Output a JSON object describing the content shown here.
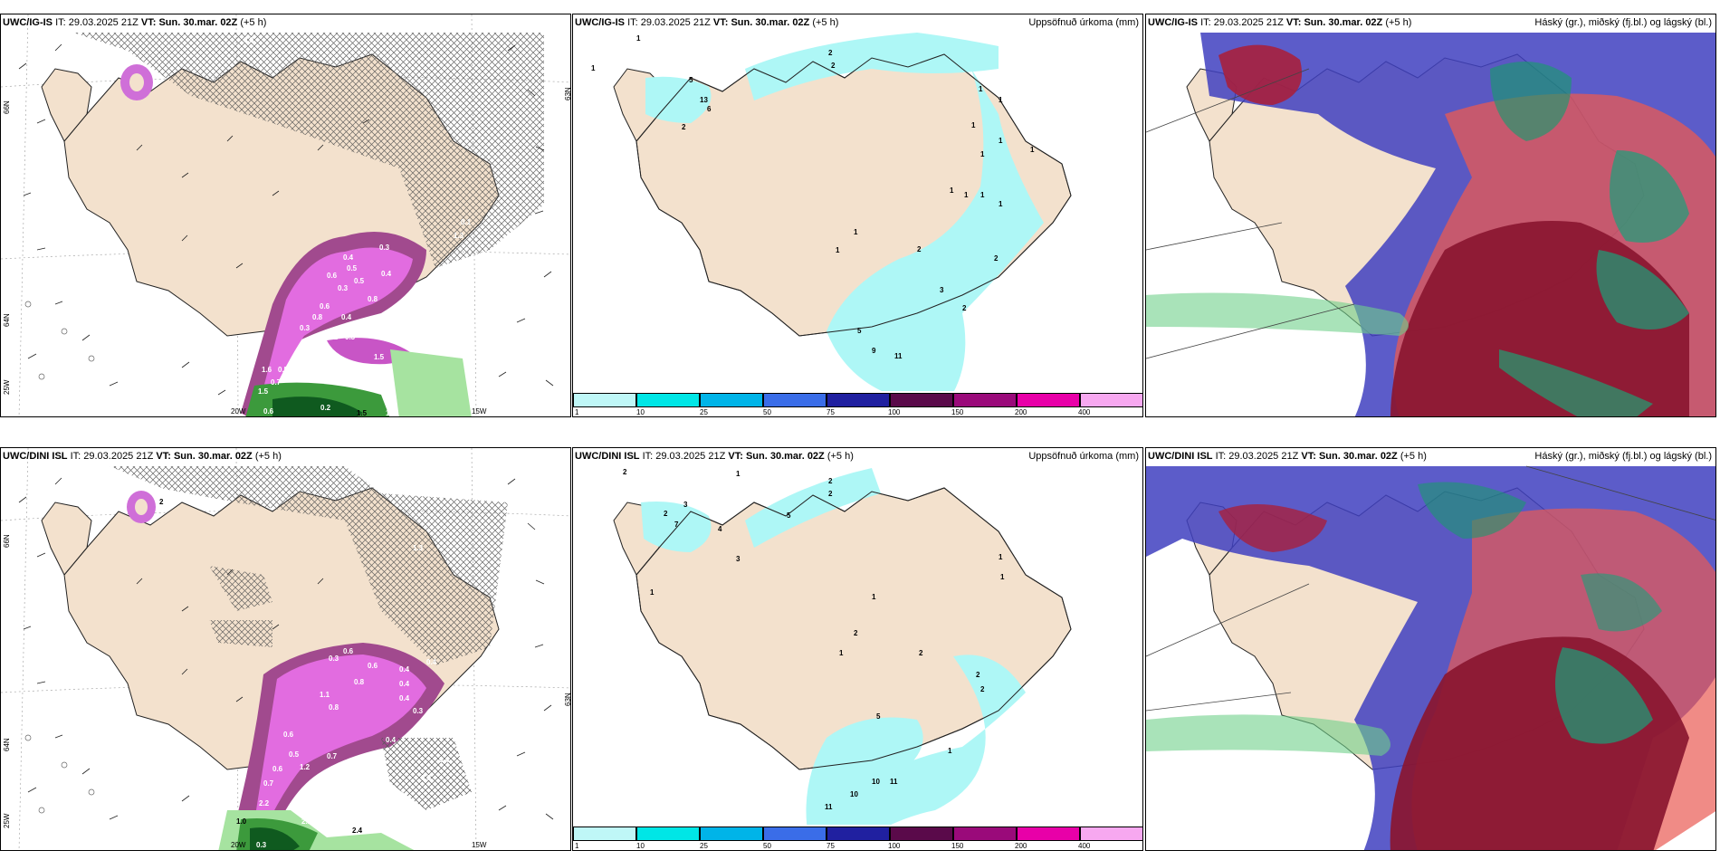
{
  "panels": {
    "p1": {
      "model": "UWC/IG-IS",
      "it_label": "IT:",
      "it": "29.03.2025 21Z",
      "vt_label": "VT:",
      "vt": "Sun. 30.mar. 02Z",
      "lead": "(+5 h)",
      "right": ""
    },
    "p2": {
      "model": "UWC/IG-IS",
      "it_label": "IT:",
      "it": "29.03.2025 21Z",
      "vt_label": "VT:",
      "vt": "Sun. 30.mar. 02Z",
      "lead": "(+5 h)",
      "right": "Uppsöfnuð úrkoma (mm)"
    },
    "p3": {
      "model": "UWC/IG-IS",
      "it_label": "IT:",
      "it": "29.03.2025 21Z",
      "vt_label": "VT:",
      "vt": "Sun. 30.mar. 02Z",
      "lead": "(+5 h)",
      "right": "Háský (gr.), miðský (fj.bl.) og lágský (bl.)"
    },
    "p4": {
      "model": "UWC/DINI ISL",
      "it_label": "IT:",
      "it": "29.03.2025 21Z",
      "vt_label": "VT:",
      "vt": "Sun. 30.mar. 02Z",
      "lead": "(+5 h)",
      "right": ""
    },
    "p5": {
      "model": "UWC/DINI ISL",
      "it_label": "IT:",
      "it": "29.03.2025 21Z",
      "vt_label": "VT:",
      "vt": "Sun. 30.mar. 02Z",
      "lead": "(+5 h)",
      "right": "Uppsöfnuð úrkoma (mm)"
    },
    "p6": {
      "model": "UWC/DINI ISL",
      "it_label": "IT:",
      "it": "29.03.2025 21Z",
      "vt_label": "VT:",
      "vt": "Sun. 30.mar. 02Z",
      "lead": "(+5 h)",
      "right": "Háský (gr.), miðský (fj.bl.) og lágský (bl.)"
    }
  },
  "axes": {
    "lat_66": "66N",
    "lat_64": "64N",
    "lat_63": "63N",
    "lon_20": "20W",
    "lon_15": "15W",
    "lon_25": "25W"
  },
  "colorbar": {
    "ticks": [
      "1",
      "10",
      "25",
      "50",
      "75",
      "100",
      "150",
      "200",
      "400"
    ],
    "colors": [
      "#bff7f7",
      "#00e6e6",
      "#00b4e8",
      "#3a6de8",
      "#2020a0",
      "#5a0a4a",
      "#9a0a7a",
      "#e800a8",
      "#f7a8f0"
    ]
  },
  "values": {
    "p1": [
      "0.3",
      "0.4",
      "0.3",
      "0.5",
      "0.4",
      "0.5",
      "0.6",
      "0.3",
      "0.4",
      "0.8",
      "0.6",
      "0.3",
      "0.8",
      "0.4",
      "0.3",
      "0.7",
      "0.5",
      "0.2",
      "0.3",
      "1.5",
      "0.5",
      "0.5",
      "1.6",
      "0.7",
      "1.5",
      "0.2",
      "1.5",
      "0.6",
      "1.3",
      "1.3",
      "0.1"
    ],
    "p2": [
      "1",
      "2",
      "2",
      "5",
      "13",
      "6",
      "2",
      "1",
      "1",
      "1",
      "1",
      "1",
      "1",
      "1",
      "1",
      "1",
      "1",
      "1",
      "2",
      "2",
      "3",
      "2",
      "1",
      "5",
      "9",
      "11",
      "1"
    ],
    "p4": [
      "2",
      "0.3",
      "1.3",
      "0.6",
      "0.4",
      "0.3",
      "0.4",
      "0.4",
      "0.6",
      "0.8",
      "0.4",
      "0.3",
      "1.1",
      "0.8",
      "0.6",
      "0.4",
      "0.7",
      "0.7",
      "0.5",
      "1.2",
      "0.6",
      "0.7",
      "0.4",
      "0.3",
      "2.2",
      "1.2",
      "1.0",
      "2.4",
      "0.3",
      "2.1",
      "2.4"
    ],
    "p5": [
      "2",
      "1",
      "2",
      "2",
      "5",
      "2",
      "7",
      "3",
      "4",
      "3",
      "1",
      "1",
      "1",
      "1",
      "2",
      "2",
      "2",
      "1",
      "2",
      "5",
      "1",
      "10",
      "11",
      "11",
      "10"
    ]
  }
}
